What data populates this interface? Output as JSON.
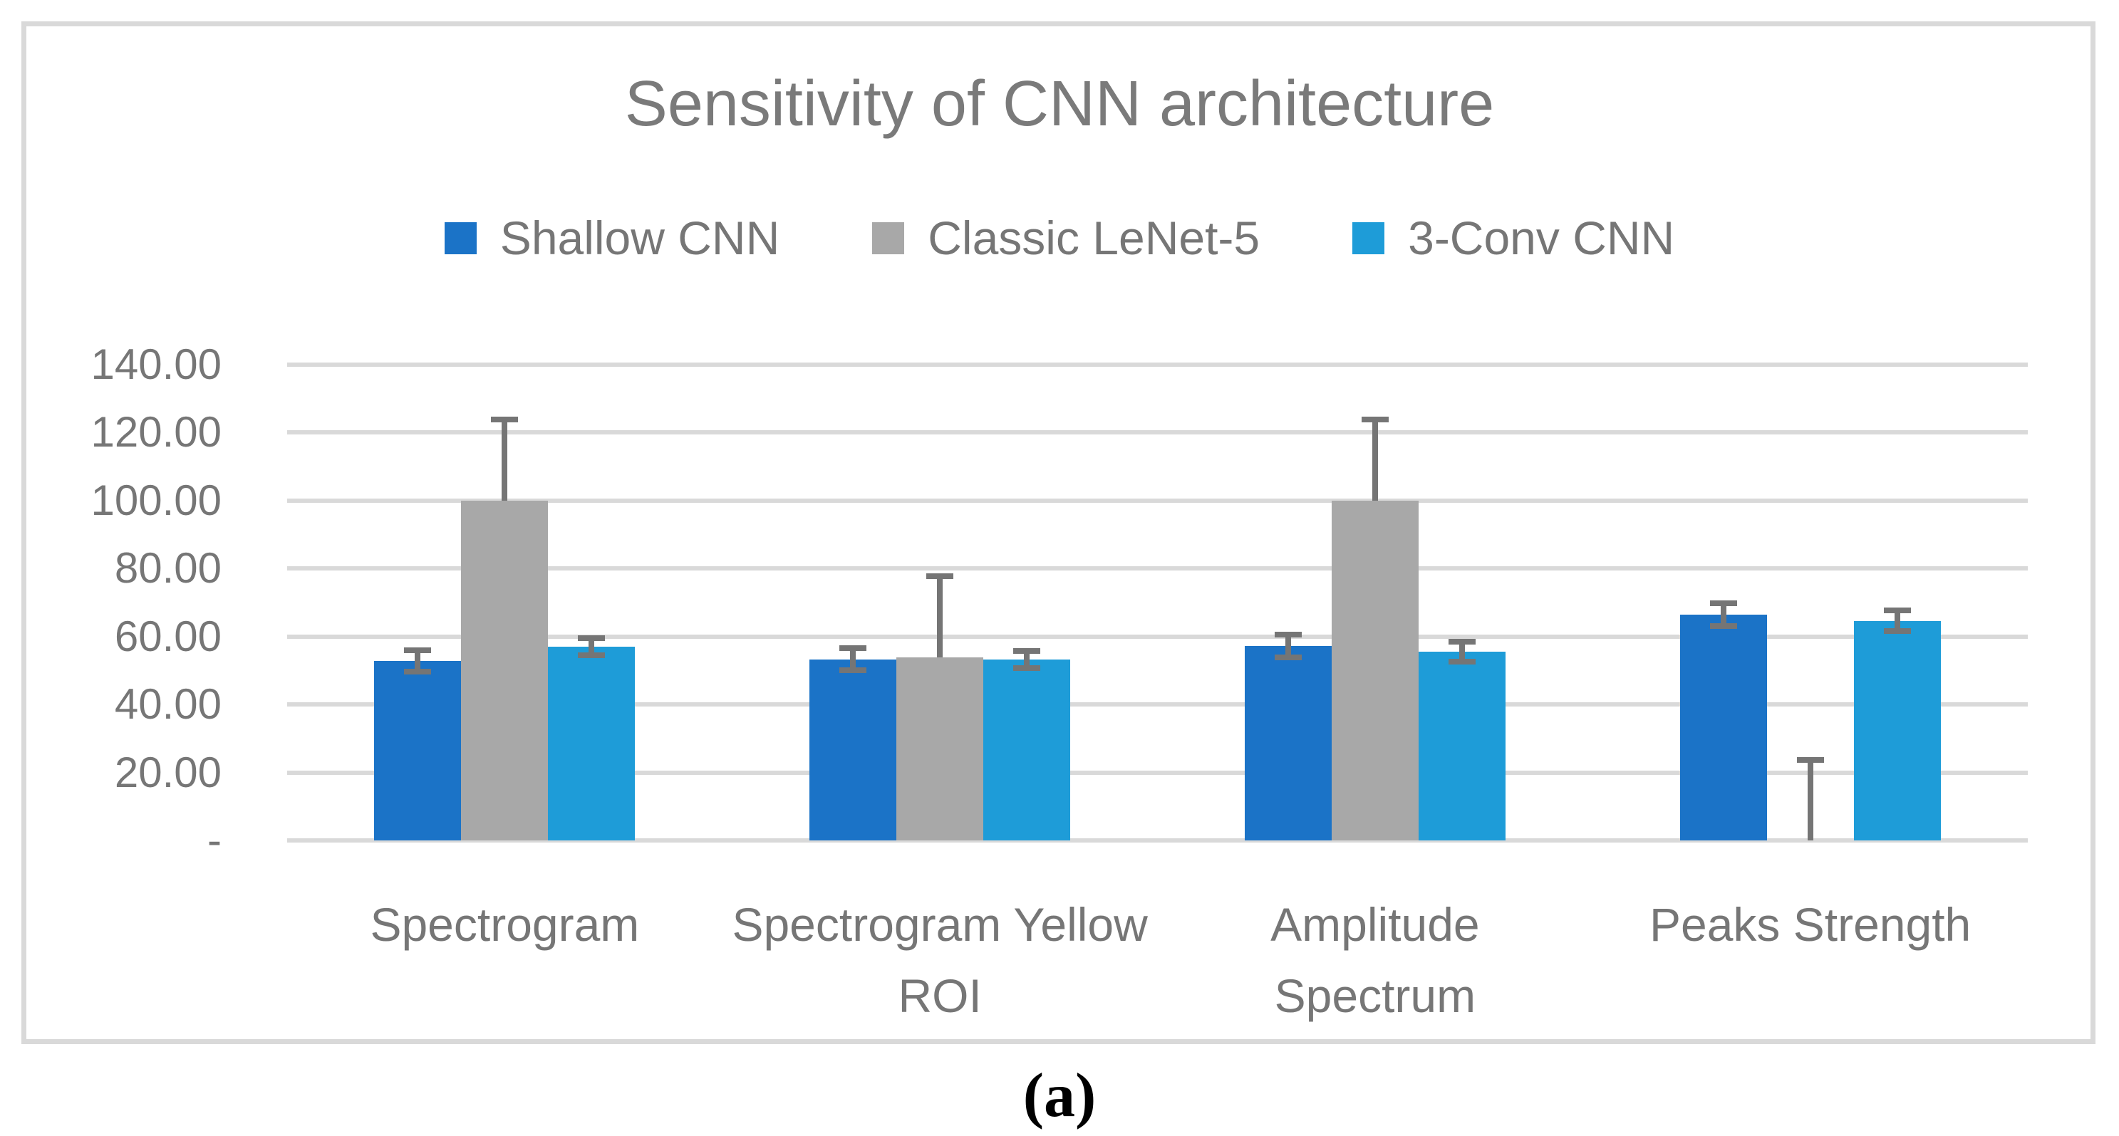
{
  "figure": {
    "caption": "(a)"
  },
  "chart_data": {
    "type": "bar",
    "title": "Sensitivity of CNN architecture",
    "legend_position": "top",
    "grid": true,
    "ylim": [
      0,
      140
    ],
    "ytick_step": 20,
    "yticks": [
      {
        "value": 0,
        "label": "-"
      },
      {
        "value": 20,
        "label": "20.00"
      },
      {
        "value": 40,
        "label": "40.00"
      },
      {
        "value": 60,
        "label": "60.00"
      },
      {
        "value": 80,
        "label": "80.00"
      },
      {
        "value": 100,
        "label": "100.00"
      },
      {
        "value": 120,
        "label": "120.00"
      },
      {
        "value": 140,
        "label": "140.00"
      }
    ],
    "categories": [
      {
        "label": "Spectrogram",
        "lines": [
          "Spectrogram"
        ]
      },
      {
        "label": "Spectrogram Yellow ROI",
        "lines": [
          "Spectrogram Yellow",
          "ROI"
        ]
      },
      {
        "label": "Amplitude Spectrum",
        "lines": [
          "Amplitude",
          "Spectrum"
        ]
      },
      {
        "label": "Peaks Strength",
        "lines": [
          "Peaks Strength"
        ]
      }
    ],
    "series": [
      {
        "name": "Shallow CNN",
        "color": "#1B73C7",
        "values": [
          52.8,
          53.3,
          57.2,
          66.4
        ],
        "err_plus": [
          3.2,
          3.3,
          3.4,
          3.3
        ],
        "err_minus": [
          3.2,
          3.3,
          3.4,
          3.3
        ]
      },
      {
        "name": "Classic LeNet-5",
        "color": "#A8A8A8",
        "values": [
          100.0,
          53.9,
          100.0,
          0.0
        ],
        "err_plus": [
          23.8,
          23.9,
          23.8,
          23.7
        ],
        "err_minus": [
          0,
          0,
          0,
          0
        ]
      },
      {
        "name": "3-Conv CNN",
        "color": "#1E9CD8",
        "values": [
          57.0,
          53.2,
          55.6,
          64.6
        ],
        "err_plus": [
          2.6,
          2.5,
          2.9,
          3.0
        ],
        "err_minus": [
          2.6,
          2.5,
          2.9,
          3.0
        ]
      }
    ],
    "colors": {
      "gridline": "#D9D9D9",
      "frame_border": "#D9D9D9",
      "axis_text": "#767676",
      "title_text": "#7A7A7A",
      "error_bar": "#757575"
    }
  }
}
